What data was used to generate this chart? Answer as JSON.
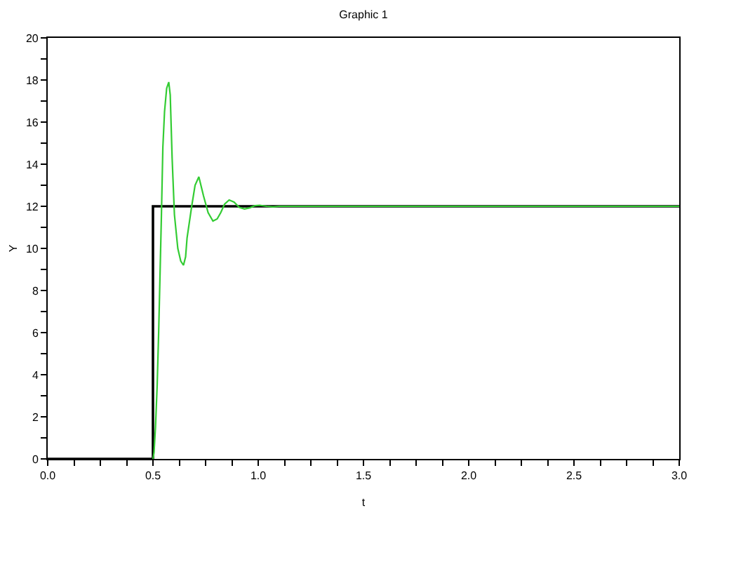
{
  "chart_data": {
    "type": "line",
    "title": "Graphic 1",
    "xlabel": "t",
    "ylabel": "Y",
    "xlim": [
      0,
      3
    ],
    "ylim": [
      0,
      20
    ],
    "xticks": [
      {
        "value": 0,
        "label": "0.0"
      },
      {
        "value": 0.125,
        "label": null
      },
      {
        "value": 0.25,
        "label": null
      },
      {
        "value": 0.375,
        "label": null
      },
      0.5,
      {
        "value": 0.625,
        "label": null
      },
      {
        "value": 0.75,
        "label": null
      },
      {
        "value": 0.875,
        "label": null
      },
      {
        "value": 1,
        "label": "1.0"
      },
      {
        "value": 1.125,
        "label": null
      },
      {
        "value": 1.25,
        "label": null
      },
      {
        "value": 1.375,
        "label": null
      },
      1.5,
      {
        "value": 1.625,
        "label": null
      },
      {
        "value": 1.75,
        "label": null
      },
      {
        "value": 1.875,
        "label": null
      },
      {
        "value": 2,
        "label": "2.0"
      },
      {
        "value": 2.125,
        "label": null
      },
      {
        "value": 2.25,
        "label": null
      },
      {
        "value": 2.375,
        "label": null
      },
      2.5,
      {
        "value": 2.625,
        "label": null
      },
      {
        "value": 2.75,
        "label": null
      },
      {
        "value": 2.875,
        "label": null
      },
      {
        "value": 3,
        "label": "3.0"
      }
    ],
    "yticks": [
      0,
      {
        "value": 1,
        "label": null
      },
      2,
      {
        "value": 3,
        "label": null
      },
      4,
      {
        "value": 5,
        "label": null
      },
      6,
      {
        "value": 7,
        "label": null
      },
      8,
      {
        "value": 9,
        "label": null
      },
      10,
      {
        "value": 11,
        "label": null
      },
      12,
      {
        "value": 13,
        "label": null
      },
      14,
      {
        "value": 15,
        "label": null
      },
      16,
      {
        "value": 17,
        "label": null
      },
      18,
      {
        "value": 19,
        "label": null
      },
      20
    ],
    "series": [
      {
        "color": "#000000",
        "x": [
          0,
          0.5,
          0.5,
          3
        ],
        "values": [
          0,
          0,
          12,
          12
        ]
      },
      {
        "color": "#33cc33",
        "x": [
          0.5,
          0.505,
          0.512,
          0.52,
          0.527,
          0.533,
          0.54,
          0.547,
          0.555,
          0.565,
          0.575,
          0.582,
          0.591,
          0.602,
          0.618,
          0.632,
          0.645,
          0.655,
          0.662,
          0.684,
          0.7,
          0.718,
          0.74,
          0.762,
          0.785,
          0.805,
          0.822,
          0.84,
          0.862,
          0.885,
          0.91,
          0.935,
          0.96,
          0.985,
          1.007,
          1.04,
          1.07,
          1.1,
          3
        ],
        "values": [
          0,
          0.3,
          1.5,
          3.5,
          6,
          8.5,
          11.5,
          14.8,
          16.5,
          17.6,
          17.9,
          17.3,
          14.3,
          11.6,
          10.0,
          9.4,
          9.2,
          9.6,
          10.5,
          12.0,
          13.0,
          13.4,
          12.5,
          11.7,
          11.3,
          11.4,
          11.7,
          12.1,
          12.3,
          12.2,
          11.95,
          11.87,
          11.93,
          12.03,
          12.05,
          12.0,
          11.97,
          12.0,
          12.0
        ]
      }
    ]
  }
}
